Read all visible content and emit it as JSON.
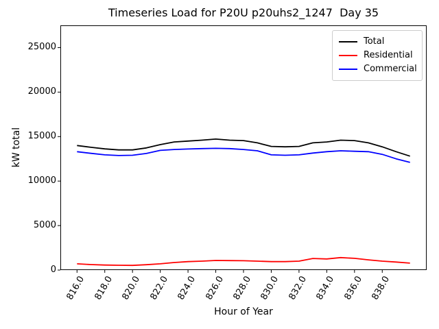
{
  "chart_data": {
    "type": "line",
    "title": "Timeseries Load for P20U p20uhs2_1247  Day 35",
    "xlabel": "Hour of Year",
    "ylabel": "kW total",
    "xlim": [
      814.8,
      841.2
    ],
    "ylim": [
      0,
      27500
    ],
    "grid": false,
    "legend_position": "upper right",
    "x_tick_labels": [
      "816.0",
      "818.0",
      "820.0",
      "822.0",
      "824.0",
      "826.0",
      "828.0",
      "830.0",
      "832.0",
      "834.0",
      "836.0",
      "838.0"
    ],
    "x_tick_values": [
      816,
      818,
      820,
      822,
      824,
      826,
      828,
      830,
      832,
      834,
      836,
      838
    ],
    "y_tick_labels": [
      "0",
      "5000",
      "10000",
      "15000",
      "20000",
      "25000"
    ],
    "y_tick_values": [
      0,
      5000,
      10000,
      15000,
      20000,
      25000
    ],
    "x": [
      816,
      817,
      818,
      819,
      820,
      821,
      822,
      823,
      824,
      825,
      826,
      827,
      828,
      829,
      830,
      831,
      832,
      833,
      834,
      835,
      836,
      837,
      838,
      839,
      840
    ],
    "series": [
      {
        "name": "Total",
        "color": "#000000",
        "values": [
          14000,
          13800,
          13620,
          13500,
          13500,
          13730,
          14100,
          14400,
          14500,
          14600,
          14720,
          14600,
          14550,
          14300,
          13900,
          13850,
          13900,
          14300,
          14400,
          14600,
          14550,
          14300,
          13850,
          13300,
          12800
        ]
      },
      {
        "name": "Residential",
        "color": "#ff0000",
        "values": [
          700,
          620,
          560,
          540,
          520,
          600,
          700,
          850,
          950,
          1000,
          1080,
          1060,
          1050,
          1000,
          950,
          950,
          1000,
          1300,
          1250,
          1400,
          1320,
          1150,
          1000,
          900,
          780
        ]
      },
      {
        "name": "Commercial",
        "color": "#0000ff",
        "values": [
          13300,
          13120,
          12950,
          12870,
          12900,
          13100,
          13450,
          13550,
          13600,
          13650,
          13680,
          13650,
          13550,
          13400,
          12950,
          12900,
          12950,
          13150,
          13300,
          13400,
          13350,
          13300,
          13000,
          12500,
          12100
        ]
      }
    ]
  }
}
